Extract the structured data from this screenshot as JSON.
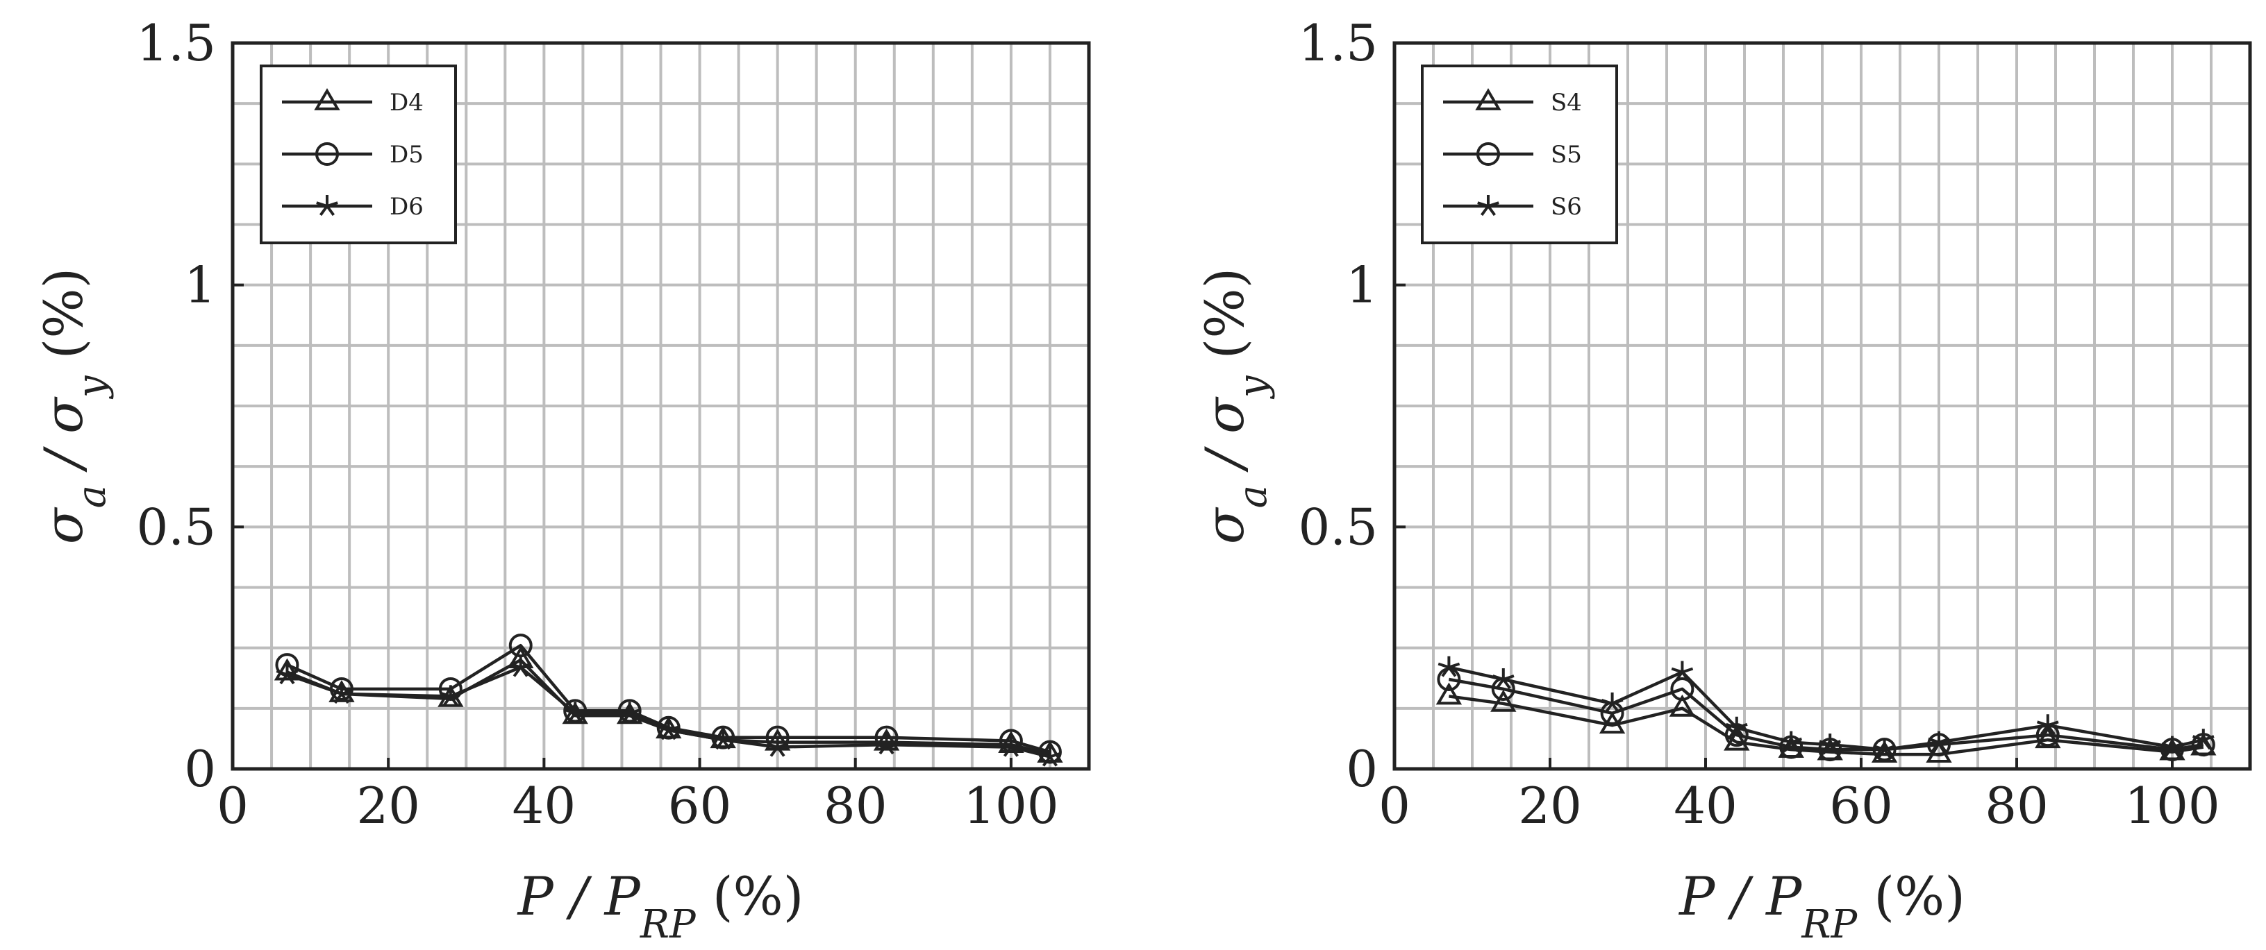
{
  "colors": {
    "line": "#222222",
    "grid": "#bdbdbd",
    "frame": "#222222",
    "background": "#ffffff"
  },
  "chart_data": [
    {
      "type": "line",
      "xlabel": "P / P_RP (%)",
      "ylabel": "σ_a / σ_y (%)",
      "xlim": [
        0,
        110
      ],
      "ylim": [
        0,
        1.5
      ],
      "x_ticks": [
        "0",
        "20",
        "40",
        "60",
        "80",
        "100"
      ],
      "y_ticks": [
        "0",
        "0.5",
        "1",
        "1.5"
      ],
      "grid": true,
      "legend_position": "top-left",
      "series": [
        {
          "name": "D4",
          "marker": "triangle",
          "x": [
            7,
            14,
            28,
            37,
            44,
            51,
            56,
            63,
            70,
            84,
            100,
            105
          ],
          "y": [
            0.2,
            0.155,
            0.145,
            0.225,
            0.11,
            0.11,
            0.08,
            0.06,
            0.055,
            0.055,
            0.05,
            0.03
          ]
        },
        {
          "name": "D5",
          "marker": "circle",
          "x": [
            7,
            14,
            28,
            37,
            44,
            51,
            56,
            63,
            70,
            84,
            100,
            105
          ],
          "y": [
            0.215,
            0.165,
            0.165,
            0.255,
            0.12,
            0.12,
            0.085,
            0.065,
            0.065,
            0.065,
            0.058,
            0.035
          ]
        },
        {
          "name": "D6",
          "marker": "star",
          "x": [
            7,
            14,
            28,
            37,
            44,
            51,
            56,
            63,
            70,
            84,
            100,
            105
          ],
          "y": [
            0.195,
            0.155,
            0.15,
            0.21,
            0.115,
            0.115,
            0.08,
            0.06,
            0.045,
            0.05,
            0.045,
            0.025
          ]
        }
      ]
    },
    {
      "type": "line",
      "xlabel": "P / P_RP (%)",
      "ylabel": "σ_a / σ_y (%)",
      "xlim": [
        0,
        110
      ],
      "ylim": [
        0,
        1.5
      ],
      "x_ticks": [
        "0",
        "20",
        "40",
        "60",
        "80",
        "100"
      ],
      "y_ticks": [
        "0",
        "0.5",
        "1",
        "1.5"
      ],
      "grid": true,
      "legend_position": "top-left",
      "series": [
        {
          "name": "S4",
          "marker": "triangle",
          "x": [
            7,
            14,
            28,
            37,
            44,
            51,
            56,
            63,
            70,
            84,
            100,
            104
          ],
          "y": [
            0.15,
            0.135,
            0.09,
            0.125,
            0.055,
            0.04,
            0.035,
            0.03,
            0.03,
            0.06,
            0.035,
            0.045
          ]
        },
        {
          "name": "S5",
          "marker": "circle",
          "x": [
            7,
            14,
            28,
            37,
            44,
            51,
            56,
            63,
            70,
            84,
            100,
            104
          ],
          "y": [
            0.185,
            0.165,
            0.115,
            0.165,
            0.07,
            0.045,
            0.04,
            0.04,
            0.05,
            0.07,
            0.04,
            0.05
          ]
        },
        {
          "name": "S6",
          "marker": "star",
          "x": [
            7,
            14,
            28,
            37,
            44,
            51,
            56,
            63,
            70,
            84,
            100,
            104
          ],
          "y": [
            0.21,
            0.185,
            0.135,
            0.2,
            0.085,
            0.055,
            0.05,
            0.04,
            0.055,
            0.09,
            0.045,
            0.06
          ]
        }
      ]
    }
  ]
}
